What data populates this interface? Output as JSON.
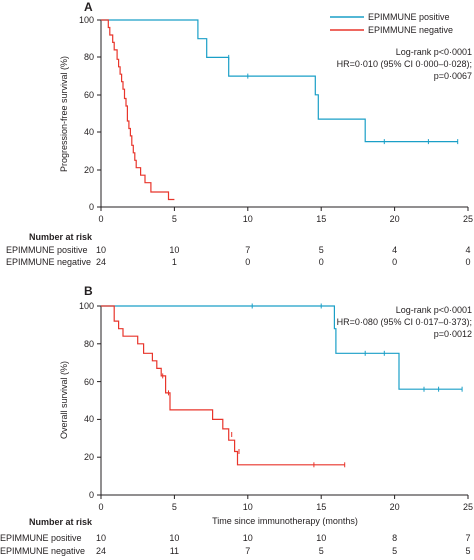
{
  "colors": {
    "positive": "#1a9fc7",
    "negative": "#e8352b",
    "axis": "#231f20"
  },
  "chart_data": [
    {
      "panel": "A",
      "type": "line",
      "step": true,
      "ylabel": "Progression-free survival (%)",
      "xlabel": "",
      "xlim": [
        0,
        25
      ],
      "ylim": [
        0,
        100
      ],
      "xticks": [
        "0",
        "5",
        "10",
        "15",
        "20",
        "25"
      ],
      "yticks": [
        "0",
        "20",
        "40",
        "60",
        "80",
        "100"
      ],
      "legend": {
        "placement": "top-right",
        "entries": [
          {
            "label": "EPIMMUNE positive",
            "color": "#1a9fc7"
          },
          {
            "label": "EPIMMUNE negative",
            "color": "#e8352b"
          }
        ]
      },
      "annotations": [
        "Log-rank p<0·0001",
        "HR=0·010 (95% CI 0·000–0·028);",
        "p=0·0067"
      ],
      "series": [
        {
          "name": "EPIMMUNE positive",
          "color": "#1a9fc7",
          "points": [
            [
              0,
              100
            ],
            [
              6.6,
              100
            ],
            [
              6.6,
              90
            ],
            [
              7.2,
              90
            ],
            [
              7.2,
              80
            ],
            [
              8.7,
              80
            ],
            [
              8.7,
              70
            ],
            [
              14.6,
              70
            ],
            [
              14.6,
              60
            ],
            [
              14.8,
              60
            ],
            [
              14.8,
              47
            ],
            [
              18.0,
              47
            ],
            [
              18.0,
              35
            ],
            [
              24.3,
              35
            ]
          ],
          "censored": [
            [
              8.7,
              80
            ],
            [
              10.0,
              70
            ],
            [
              19.3,
              35
            ],
            [
              22.3,
              35
            ],
            [
              24.3,
              35
            ]
          ]
        },
        {
          "name": "EPIMMUNE negative",
          "color": "#e8352b",
          "points": [
            [
              0,
              100
            ],
            [
              0.5,
              100
            ],
            [
              0.5,
              96
            ],
            [
              0.6,
              96
            ],
            [
              0.6,
              92
            ],
            [
              0.8,
              92
            ],
            [
              0.8,
              88
            ],
            [
              0.9,
              88
            ],
            [
              0.9,
              84
            ],
            [
              1.1,
              84
            ],
            [
              1.1,
              79
            ],
            [
              1.2,
              79
            ],
            [
              1.2,
              75
            ],
            [
              1.3,
              75
            ],
            [
              1.3,
              71
            ],
            [
              1.4,
              71
            ],
            [
              1.4,
              67
            ],
            [
              1.5,
              67
            ],
            [
              1.5,
              63
            ],
            [
              1.6,
              63
            ],
            [
              1.6,
              58
            ],
            [
              1.7,
              58
            ],
            [
              1.7,
              54
            ],
            [
              1.8,
              54
            ],
            [
              1.8,
              46
            ],
            [
              1.9,
              46
            ],
            [
              1.9,
              42
            ],
            [
              2.0,
              42
            ],
            [
              2.0,
              38
            ],
            [
              2.1,
              38
            ],
            [
              2.1,
              33
            ],
            [
              2.2,
              33
            ],
            [
              2.2,
              29
            ],
            [
              2.3,
              29
            ],
            [
              2.3,
              25
            ],
            [
              2.4,
              25
            ],
            [
              2.4,
              21
            ],
            [
              2.7,
              21
            ],
            [
              2.7,
              17
            ],
            [
              3.0,
              17
            ],
            [
              3.0,
              13
            ],
            [
              3.4,
              13
            ],
            [
              3.4,
              8
            ],
            [
              4.6,
              8
            ],
            [
              4.6,
              4
            ],
            [
              5.0,
              4
            ]
          ],
          "censored": []
        }
      ],
      "risk_table": {
        "title": "Number at risk",
        "rows": [
          {
            "label": "EPIMMUNE positive",
            "values": [
              "10",
              "10",
              "7",
              "5",
              "4",
              "4"
            ]
          },
          {
            "label": "EPIMMUNE negative",
            "values": [
              "24",
              "1",
              "0",
              "0",
              "0",
              "0"
            ]
          }
        ]
      }
    },
    {
      "panel": "B",
      "type": "line",
      "step": true,
      "ylabel": "Overall survival (%)",
      "xlabel": "Time since immunotherapy (months)",
      "xlim": [
        0,
        25
      ],
      "ylim": [
        0,
        100
      ],
      "xticks": [
        "0",
        "5",
        "10",
        "15",
        "20",
        "25"
      ],
      "yticks": [
        "0",
        "20",
        "40",
        "60",
        "80",
        "100"
      ],
      "annotations": [
        "Log-rank p<0·0001",
        "HR=0·080 (95% CI 0·017–0·373);",
        "p=0·0012"
      ],
      "series": [
        {
          "name": "EPIMMUNE positive",
          "color": "#1a9fc7",
          "points": [
            [
              0,
              100
            ],
            [
              15.9,
              100
            ],
            [
              15.9,
              88
            ],
            [
              16.0,
              88
            ],
            [
              16.0,
              75
            ],
            [
              20.3,
              75
            ],
            [
              20.3,
              56
            ],
            [
              24.6,
              56
            ]
          ],
          "censored": [
            [
              10.3,
              100
            ],
            [
              15.0,
              100
            ],
            [
              18.0,
              75
            ],
            [
              19.3,
              75
            ],
            [
              22.0,
              56
            ],
            [
              23.0,
              56
            ],
            [
              24.6,
              56
            ]
          ]
        },
        {
          "name": "EPIMMUNE negative",
          "color": "#e8352b",
          "points": [
            [
              0,
              100
            ],
            [
              0.9,
              100
            ],
            [
              0.9,
              92
            ],
            [
              1.2,
              92
            ],
            [
              1.2,
              88
            ],
            [
              1.5,
              88
            ],
            [
              1.5,
              84
            ],
            [
              2.5,
              84
            ],
            [
              2.5,
              80
            ],
            [
              2.9,
              80
            ],
            [
              2.9,
              75
            ],
            [
              3.5,
              75
            ],
            [
              3.5,
              71
            ],
            [
              3.8,
              71
            ],
            [
              3.8,
              67
            ],
            [
              4.1,
              67
            ],
            [
              4.1,
              63
            ],
            [
              4.4,
              63
            ],
            [
              4.4,
              54
            ],
            [
              4.7,
              54
            ],
            [
              4.7,
              45
            ],
            [
              7.6,
              45
            ],
            [
              7.6,
              40
            ],
            [
              8.3,
              40
            ],
            [
              8.3,
              35
            ],
            [
              8.7,
              35
            ],
            [
              8.7,
              29
            ],
            [
              9.1,
              29
            ],
            [
              9.1,
              23
            ],
            [
              9.3,
              23
            ],
            [
              9.3,
              16
            ],
            [
              16.6,
              16
            ]
          ],
          "censored": [
            [
              4.2,
              63
            ],
            [
              4.6,
              54
            ],
            [
              8.9,
              32
            ],
            [
              9.4,
              23
            ],
            [
              14.5,
              16
            ],
            [
              16.6,
              16
            ]
          ]
        }
      ],
      "risk_table": {
        "title": "Number at risk",
        "rows": [
          {
            "label": "EPIMMUNE positive",
            "values": [
              "10",
              "10",
              "10",
              "10",
              "8",
              "7"
            ]
          },
          {
            "label": "EPIMMUNE negative",
            "values": [
              "24",
              "11",
              "7",
              "5",
              "5",
              "5"
            ]
          }
        ]
      }
    }
  ]
}
